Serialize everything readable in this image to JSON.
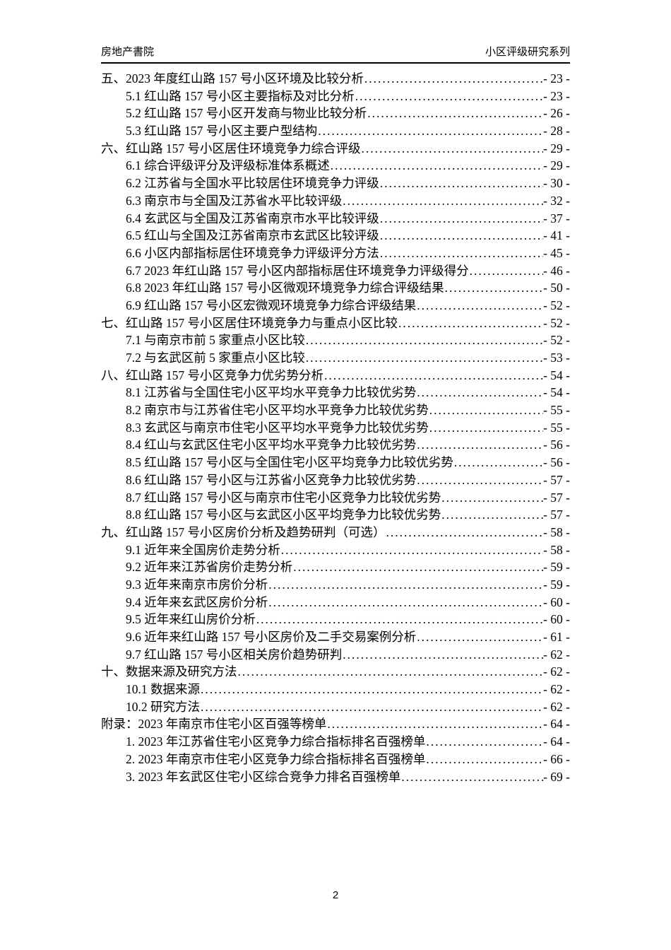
{
  "header": {
    "left_title": "房地产書院",
    "right_title": "小区评级研究系列"
  },
  "toc": {
    "entries": [
      {
        "label": "五、2023 年度红山路 157 号小区环境及比较分析",
        "page": "- 23 -",
        "level": 0
      },
      {
        "label": "5.1 红山路 157 号小区主要指标及对比分析",
        "page": "- 23 -",
        "level": 1
      },
      {
        "label": "5.2 红山路 157 号小区开发商与物业比较分析",
        "page": "- 26 -",
        "level": 1
      },
      {
        "label": "5.3 红山路 157 号小区主要户型结构",
        "page": "- 28 -",
        "level": 1
      },
      {
        "label": "六、红山路 157 号小区居住环境竞争力综合评级",
        "page": "- 29 -",
        "level": 0
      },
      {
        "label": "6.1 综合评级评分及评级标准体系概述",
        "page": "- 29 -",
        "level": 1
      },
      {
        "label": "6.2 江苏省与全国水平比较居住环境竞争力评级",
        "page": "- 30 -",
        "level": 1
      },
      {
        "label": "6.3 南京市与全国及江苏省水平比较评级",
        "page": "- 32 -",
        "level": 1
      },
      {
        "label": "6.4 玄武区与全国及江苏省南京市水平比较评级",
        "page": "- 37 -",
        "level": 1
      },
      {
        "label": "6.5 红山与全国及江苏省南京市玄武区比较评级",
        "page": "- 41 -",
        "level": 1
      },
      {
        "label": "6.6 小区内部指标居住环境竞争力评级评分方法",
        "page": "- 45 -",
        "level": 1
      },
      {
        "label": "6.7 2023 年红山路 157 号小区内部指标居住环境竞争力评级得分",
        "page": "- 46 -",
        "level": 1
      },
      {
        "label": "6.8 2023 年红山路 157 号小区微观环境竞争力综合评级结果",
        "page": "- 50 -",
        "level": 1
      },
      {
        "label": "6.9 红山路 157 号小区宏微观环境竞争力综合评级结果",
        "page": "- 52 -",
        "level": 1
      },
      {
        "label": "七、红山路 157 号小区居住环境竞争力与重点小区比较",
        "page": "- 52 -",
        "level": 0
      },
      {
        "label": "7.1 与南京市前 5 家重点小区比较",
        "page": "- 52 -",
        "level": 1
      },
      {
        "label": "7.2 与玄武区前 5 家重点小区比较",
        "page": "- 53 -",
        "level": 1
      },
      {
        "label": "八、红山路 157 号小区竞争力优劣势分析",
        "page": "- 54 -",
        "level": 0
      },
      {
        "label": "8.1 江苏省与全国住宅小区平均水平竞争力比较优劣势",
        "page": "- 54 -",
        "level": 1
      },
      {
        "label": "8.2 南京市与江苏省住宅小区平均水平竞争力比较优劣势",
        "page": "- 55 -",
        "level": 1
      },
      {
        "label": "8.3 玄武区与南京市住宅小区平均水平竞争力比较优劣势",
        "page": "- 55 -",
        "level": 1
      },
      {
        "label": "8.4 红山与玄武区住宅小区平均水平竞争力比较优劣势",
        "page": "- 56 -",
        "level": 1
      },
      {
        "label": "8.5 红山路 157 号小区与全国住宅小区平均竞争力比较优劣势",
        "page": "- 56 -",
        "level": 1
      },
      {
        "label": "8.6 红山路 157 号小区与江苏省小区竞争力比较优劣势",
        "page": "- 57 -",
        "level": 1
      },
      {
        "label": "8.7 红山路 157 号小区与南京市住宅小区竞争力比较优劣势",
        "page": "- 57 -",
        "level": 1
      },
      {
        "label": "8.8 红山路 157 号小区与玄武区小区平均竞争力比较优劣势",
        "page": "- 57 -",
        "level": 1
      },
      {
        "label": "九、红山路 157 号小区房价分析及趋势研判（可选）",
        "page": "- 58 -",
        "level": 0
      },
      {
        "label": "9.1 近年来全国房价走势分析",
        "page": "- 58 -",
        "level": 1
      },
      {
        "label": "9.2 近年来江苏省房价走势分析",
        "page": "- 59 -",
        "level": 1
      },
      {
        "label": "9.3 近年来南京市房价分析",
        "page": "- 59 -",
        "level": 1
      },
      {
        "label": "9.4 近年来玄武区房价分析",
        "page": "- 60 -",
        "level": 1
      },
      {
        "label": "9.5 近年来红山房价分析",
        "page": "- 60 -",
        "level": 1
      },
      {
        "label": "9.6 近年来红山路 157 号小区房价及二手交易案例分析",
        "page": "- 61 -",
        "level": 1
      },
      {
        "label": "9.7 红山路 157 号小区相关房价趋势研判",
        "page": "- 62 -",
        "level": 1
      },
      {
        "label": "十、数据来源及研究方法",
        "page": "- 62 -",
        "level": 0
      },
      {
        "label": "10.1 数据来源",
        "page": "- 62 -",
        "level": 1
      },
      {
        "label": "10.2 研究方法",
        "page": "- 62 -",
        "level": 1
      },
      {
        "label": "附录：2023 年南京市住宅小区百强等榜单",
        "page": "- 64 -",
        "level": 0
      },
      {
        "label": "1.  2023 年江苏省住宅小区竞争力综合指标排名百强榜单",
        "page": "- 64 -",
        "level": 1
      },
      {
        "label": "2.  2023 年南京市住宅小区竞争力综合指标排名百强榜单",
        "page": "- 66 -",
        "level": 1
      },
      {
        "label": "3.  2023 年玄武区住宅小区综合竞争力排名百强榜单",
        "page": "- 69 -",
        "level": 1
      }
    ]
  },
  "footer": {
    "page_number": "2"
  }
}
